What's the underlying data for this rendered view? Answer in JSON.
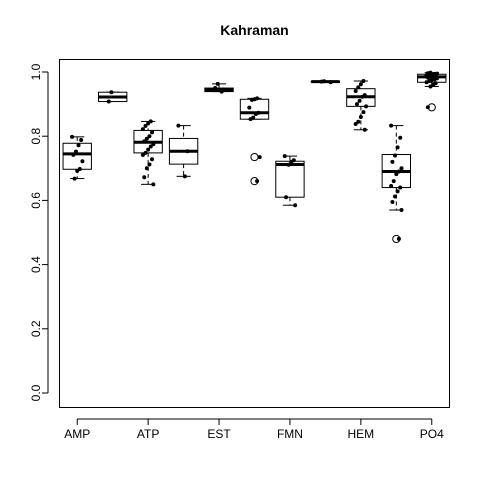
{
  "chart_data": {
    "type": "boxplot",
    "title": "Kahraman",
    "xlabel": "",
    "ylabel": "",
    "ylim": [
      0,
      1.0
    ],
    "yticks": [
      "0.0",
      "0.2",
      "0.4",
      "0.6",
      "0.8",
      "1.0"
    ],
    "grid": false,
    "categories": [
      "AMP",
      "ATP",
      "EST",
      "FMN",
      "HEM",
      "PO4"
    ],
    "boxes": [
      {
        "q1": 0.697,
        "median": 0.745,
        "q3": 0.778,
        "whisker_low": 0.668,
        "whisker_high": 0.798,
        "outliers": [],
        "points": [
          0.798,
          0.788,
          0.772,
          0.752,
          0.742,
          0.722,
          0.698,
          0.692,
          0.668
        ]
      },
      {
        "q1": 0.908,
        "median": 0.922,
        "q3": 0.937,
        "whisker_low": 0.908,
        "whisker_high": 0.937,
        "outliers": [],
        "points": [
          0.937,
          0.908
        ]
      },
      {
        "q1": 0.748,
        "median": 0.781,
        "q3": 0.818,
        "whisker_low": 0.65,
        "whisker_high": 0.846,
        "outliers": [],
        "points": [
          0.846,
          0.84,
          0.832,
          0.822,
          0.812,
          0.8,
          0.792,
          0.784,
          0.775,
          0.768,
          0.758,
          0.748,
          0.742,
          0.728,
          0.712,
          0.7,
          0.672,
          0.65
        ]
      },
      {
        "q1": 0.713,
        "median": 0.753,
        "q3": 0.793,
        "whisker_low": 0.675,
        "whisker_high": 0.833,
        "outliers": [],
        "points": [
          0.833,
          0.753,
          0.675
        ]
      },
      {
        "q1": 0.939,
        "median": 0.944,
        "q3": 0.95,
        "whisker_low": 0.939,
        "whisker_high": 0.963,
        "outliers": [],
        "points": [
          0.963,
          0.95,
          0.944,
          0.939
        ]
      },
      {
        "q1": 0.853,
        "median": 0.873,
        "q3": 0.915,
        "whisker_low": 0.853,
        "whisker_high": 0.918,
        "outliers": [
          0.735,
          0.66
        ],
        "points": [
          0.918,
          0.915,
          0.913,
          0.889,
          0.873,
          0.869,
          0.858,
          0.853,
          0.735,
          0.66
        ]
      },
      {
        "q1": 0.61,
        "median": 0.712,
        "q3": 0.722,
        "whisker_low": 0.585,
        "whisker_high": 0.738,
        "outliers": [],
        "points": [
          0.738,
          0.725,
          0.72,
          0.711,
          0.61,
          0.585
        ]
      },
      {
        "q1": 0.968,
        "median": 0.97,
        "q3": 0.971,
        "whisker_low": 0.968,
        "whisker_high": 0.971,
        "outliers": [],
        "points": [
          0.971,
          0.97,
          0.968
        ]
      },
      {
        "q1": 0.893,
        "median": 0.923,
        "q3": 0.948,
        "whisker_low": 0.82,
        "whisker_high": 0.972,
        "outliers": [],
        "points": [
          0.972,
          0.962,
          0.952,
          0.941,
          0.928,
          0.923,
          0.91,
          0.9,
          0.893,
          0.875,
          0.86,
          0.845,
          0.838,
          0.82
        ]
      },
      {
        "q1": 0.64,
        "median": 0.69,
        "q3": 0.743,
        "whisker_low": 0.57,
        "whisker_high": 0.833,
        "outliers": [
          0.48
        ],
        "points": [
          0.833,
          0.795,
          0.765,
          0.74,
          0.72,
          0.7,
          0.69,
          0.682,
          0.66,
          0.645,
          0.64,
          0.628,
          0.612,
          0.595,
          0.57,
          0.48
        ]
      },
      {
        "q1": 0.968,
        "median": 0.985,
        "q3": 0.993,
        "whisker_low": 0.955,
        "whisker_high": 0.998,
        "outliers": [
          0.89
        ],
        "points": [
          0.998,
          0.996,
          0.995,
          0.994,
          0.993,
          0.992,
          0.99,
          0.988,
          0.986,
          0.985,
          0.983,
          0.98,
          0.977,
          0.975,
          0.972,
          0.968,
          0.965,
          0.96,
          0.955,
          0.89
        ]
      }
    ],
    "tick_positions": [
      1,
      3,
      5,
      7,
      9,
      11
    ],
    "box_color": "#000000",
    "point_color": "#000000"
  }
}
